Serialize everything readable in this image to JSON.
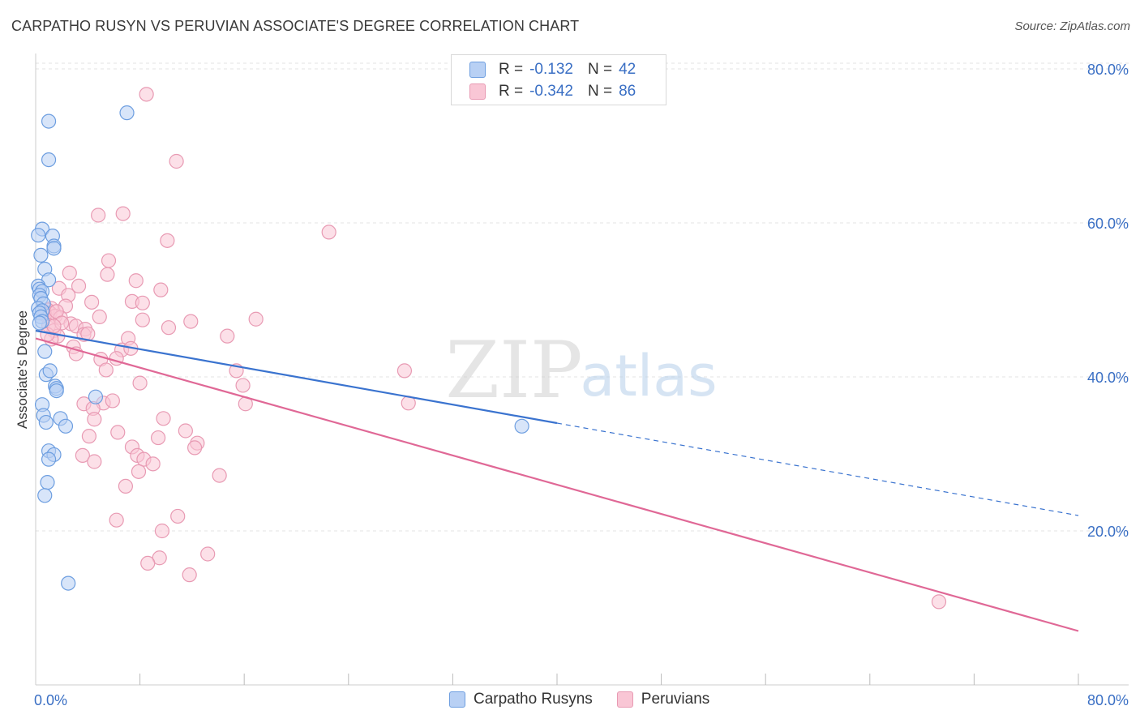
{
  "title": "CARPATHO RUSYN VS PERUVIAN ASSOCIATE'S DEGREE CORRELATION CHART",
  "source": "Source: ZipAtlas.com",
  "watermark": {
    "zip": "ZIP",
    "atlas": "atlas"
  },
  "colors": {
    "blue_fill": "#b8d0f4",
    "blue_stroke": "#6d9ee0",
    "blue_line": "#3a73cf",
    "pink_fill": "#f9c6d5",
    "pink_stroke": "#e89ab3",
    "pink_line": "#e06896",
    "tick_label": "#3a6fc4",
    "grid": "#e3e3e3"
  },
  "legend": {
    "rows": [
      {
        "r_label": "R =",
        "r_value": "-0.132",
        "n_label": "N =",
        "n_value": "42"
      },
      {
        "r_label": "R =",
        "r_value": "-0.342",
        "n_label": "N =",
        "n_value": "86"
      }
    ]
  },
  "chart_data": {
    "type": "scatter",
    "title": "CARPATHO RUSYN VS PERUVIAN ASSOCIATE'S DEGREE CORRELATION CHART",
    "xlabel": "",
    "ylabel": "Associate's Degree",
    "xlim": [
      0,
      80
    ],
    "ylim": [
      0,
      82
    ],
    "x_tick_labels": [
      {
        "value": 0,
        "label": "0.0%"
      },
      {
        "value": 80,
        "label": "80.0%"
      }
    ],
    "y_tick_labels": [
      {
        "value": 20,
        "label": "20.0%"
      },
      {
        "value": 40,
        "label": "40.0%"
      },
      {
        "value": 60,
        "label": "60.0%"
      },
      {
        "value": 80,
        "label": "80.0%"
      }
    ],
    "x_minor_ticks": [
      8,
      16,
      24,
      32,
      40,
      48,
      56,
      64,
      72,
      80
    ],
    "grid": true,
    "legend_position": "top-center",
    "series": [
      {
        "name": "Carpatho Rusyns",
        "color": "#6d9ee0",
        "trend": {
          "x": [
            0,
            40
          ],
          "y": [
            46.0,
            34.0
          ],
          "dashed_to": [
            80,
            22.0
          ]
        },
        "points": [
          [
            1.0,
            73.2
          ],
          [
            7.0,
            74.3
          ],
          [
            1.0,
            68.2
          ],
          [
            0.5,
            59.2
          ],
          [
            0.2,
            58.4
          ],
          [
            1.3,
            58.3
          ],
          [
            1.4,
            57.0
          ],
          [
            1.4,
            56.7
          ],
          [
            0.4,
            55.8
          ],
          [
            0.7,
            54.0
          ],
          [
            1.0,
            52.6
          ],
          [
            0.2,
            51.8
          ],
          [
            0.3,
            51.4
          ],
          [
            0.5,
            51.1
          ],
          [
            0.3,
            50.6
          ],
          [
            0.4,
            50.2
          ],
          [
            0.6,
            49.5
          ],
          [
            0.2,
            48.9
          ],
          [
            0.5,
            48.6
          ],
          [
            0.3,
            48.3
          ],
          [
            0.4,
            47.8
          ],
          [
            0.5,
            47.2
          ],
          [
            0.7,
            43.3
          ],
          [
            0.8,
            40.3
          ],
          [
            1.1,
            40.8
          ],
          [
            1.5,
            38.8
          ],
          [
            1.6,
            38.5
          ],
          [
            1.6,
            38.2
          ],
          [
            4.6,
            37.4
          ],
          [
            0.5,
            36.4
          ],
          [
            0.6,
            35.0
          ],
          [
            0.8,
            34.1
          ],
          [
            1.9,
            34.6
          ],
          [
            2.3,
            33.6
          ],
          [
            1.0,
            30.4
          ],
          [
            1.4,
            29.9
          ],
          [
            1.0,
            29.3
          ],
          [
            0.9,
            26.3
          ],
          [
            0.7,
            24.6
          ],
          [
            2.5,
            13.2
          ],
          [
            37.3,
            33.6
          ],
          [
            0.3,
            47.0
          ]
        ]
      },
      {
        "name": "Peruvians",
        "color": "#e89ab3",
        "trend": {
          "x": [
            0,
            80
          ],
          "y": [
            45.0,
            7.0
          ]
        },
        "points": [
          [
            8.5,
            76.7
          ],
          [
            10.8,
            68.0
          ],
          [
            4.8,
            61.0
          ],
          [
            6.7,
            61.2
          ],
          [
            10.1,
            57.7
          ],
          [
            22.5,
            58.8
          ],
          [
            5.6,
            55.1
          ],
          [
            2.6,
            53.5
          ],
          [
            5.5,
            53.3
          ],
          [
            7.7,
            52.5
          ],
          [
            3.3,
            51.8
          ],
          [
            9.6,
            51.3
          ],
          [
            1.8,
            51.5
          ],
          [
            2.5,
            50.6
          ],
          [
            4.3,
            49.7
          ],
          [
            7.4,
            49.8
          ],
          [
            8.2,
            49.6
          ],
          [
            2.3,
            49.2
          ],
          [
            1.2,
            48.9
          ],
          [
            0.9,
            48.7
          ],
          [
            1.1,
            48.3
          ],
          [
            0.7,
            48.1
          ],
          [
            1.5,
            47.9
          ],
          [
            1.9,
            47.7
          ],
          [
            4.9,
            47.8
          ],
          [
            8.2,
            47.4
          ],
          [
            11.9,
            47.2
          ],
          [
            16.9,
            47.5
          ],
          [
            1.0,
            46.7
          ],
          [
            2.7,
            46.9
          ],
          [
            3.1,
            46.6
          ],
          [
            3.8,
            46.2
          ],
          [
            1.4,
            46.0
          ],
          [
            10.2,
            46.4
          ],
          [
            1.7,
            45.3
          ],
          [
            3.7,
            45.5
          ],
          [
            1.2,
            44.9
          ],
          [
            0.9,
            45.5
          ],
          [
            7.1,
            45.0
          ],
          [
            2.9,
            43.9
          ],
          [
            6.6,
            43.5
          ],
          [
            7.3,
            43.7
          ],
          [
            3.1,
            43.0
          ],
          [
            5.0,
            42.3
          ],
          [
            6.2,
            42.4
          ],
          [
            14.7,
            45.3
          ],
          [
            15.4,
            40.8
          ],
          [
            28.3,
            40.8
          ],
          [
            5.4,
            40.9
          ],
          [
            8.0,
            39.2
          ],
          [
            15.9,
            38.9
          ],
          [
            3.7,
            36.5
          ],
          [
            5.2,
            36.6
          ],
          [
            5.9,
            36.9
          ],
          [
            16.1,
            36.5
          ],
          [
            28.6,
            36.6
          ],
          [
            4.4,
            35.9
          ],
          [
            4.5,
            34.5
          ],
          [
            9.8,
            34.6
          ],
          [
            6.3,
            32.8
          ],
          [
            11.5,
            33.0
          ],
          [
            4.1,
            32.3
          ],
          [
            9.4,
            32.1
          ],
          [
            12.4,
            31.4
          ],
          [
            7.4,
            30.9
          ],
          [
            12.2,
            30.8
          ],
          [
            3.6,
            29.8
          ],
          [
            7.8,
            29.8
          ],
          [
            4.5,
            29.0
          ],
          [
            8.3,
            29.3
          ],
          [
            9.0,
            28.7
          ],
          [
            7.9,
            27.7
          ],
          [
            14.1,
            27.2
          ],
          [
            6.9,
            25.8
          ],
          [
            10.9,
            21.9
          ],
          [
            6.2,
            21.4
          ],
          [
            9.7,
            20.0
          ],
          [
            13.2,
            17.0
          ],
          [
            9.5,
            16.5
          ],
          [
            8.6,
            15.8
          ],
          [
            11.8,
            14.3
          ],
          [
            69.3,
            10.8
          ],
          [
            1.6,
            48.5
          ],
          [
            2.0,
            47.0
          ],
          [
            4.0,
            45.6
          ],
          [
            1.4,
            46.6
          ]
        ]
      }
    ]
  }
}
